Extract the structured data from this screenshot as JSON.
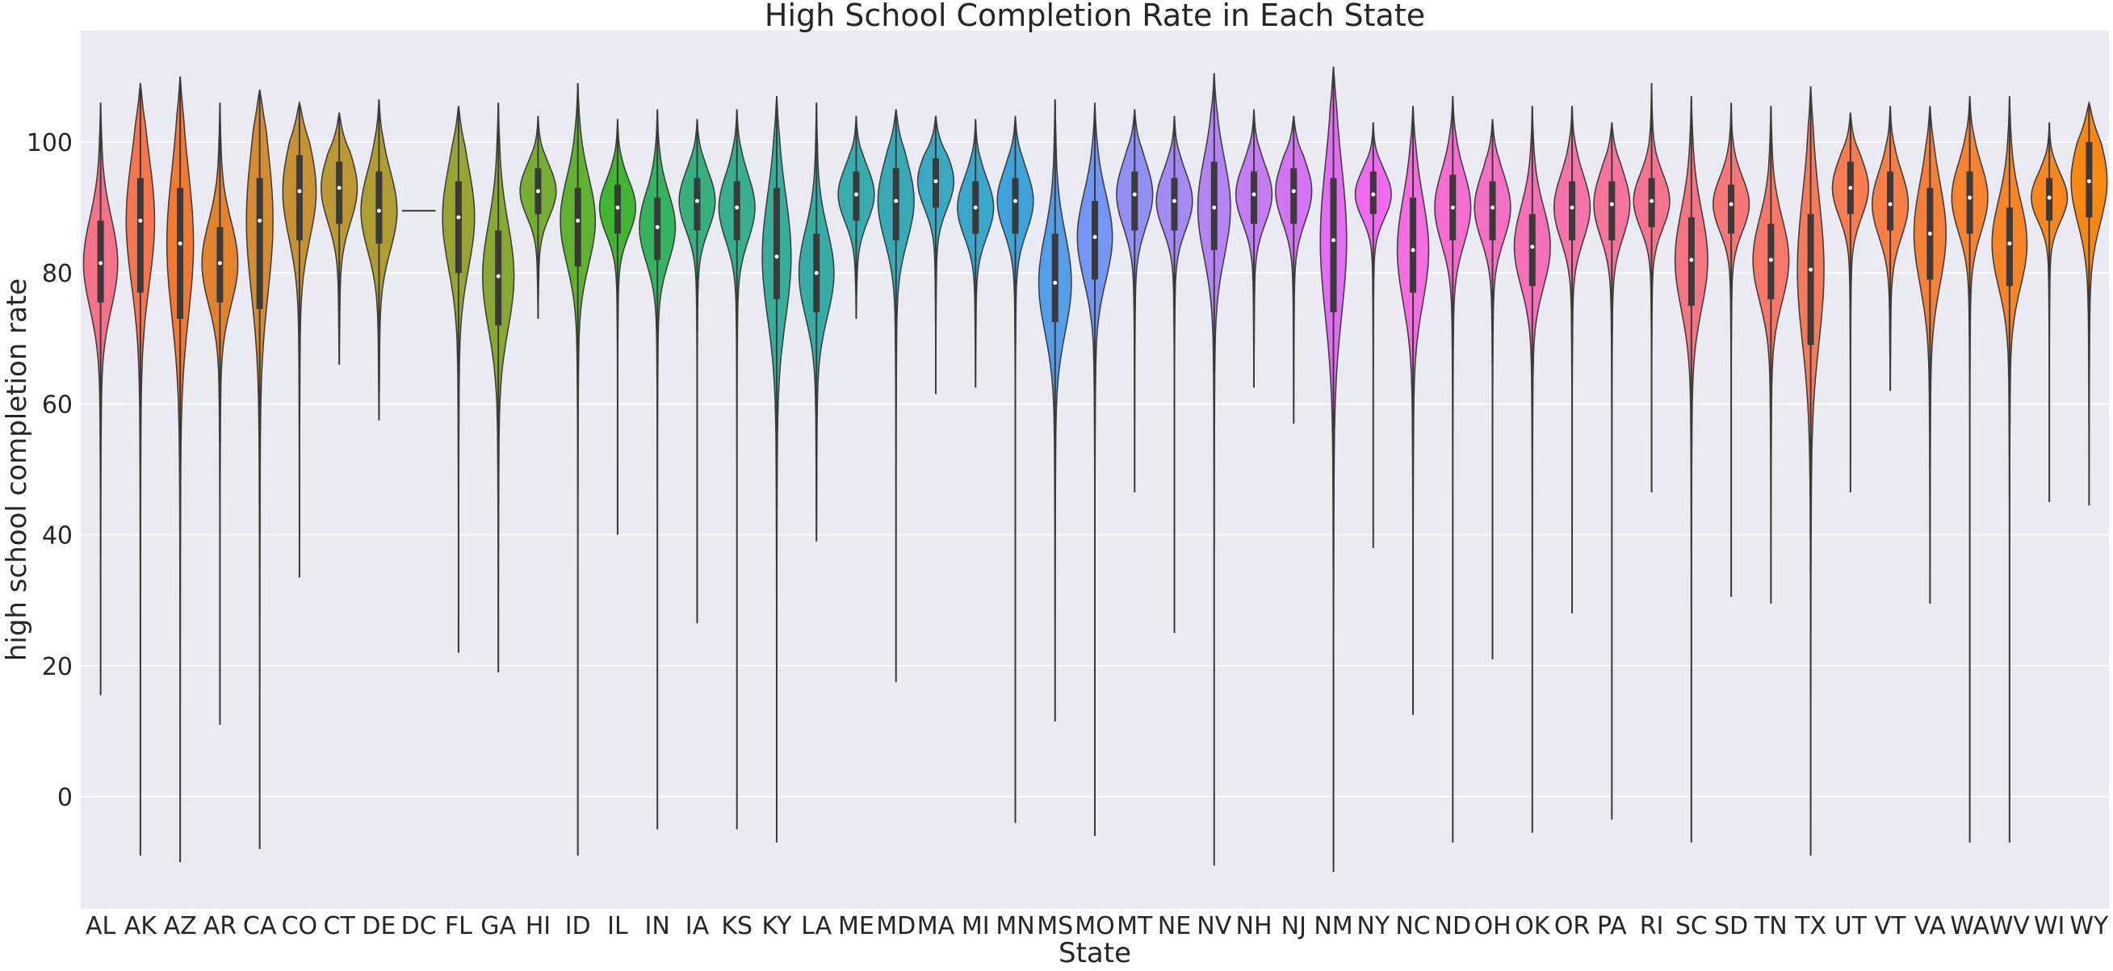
{
  "chart_data": {
    "type": "violin",
    "title": "High School Completion Rate in Each State",
    "xlabel": "State",
    "ylabel": "high school completion rate",
    "ylim": [
      -17,
      117
    ],
    "yticks": [
      0,
      20,
      40,
      60,
      80,
      100
    ],
    "grid": true,
    "categories": [
      "AL",
      "AK",
      "AZ",
      "AR",
      "CA",
      "CO",
      "CT",
      "DE",
      "DC",
      "FL",
      "GA",
      "HI",
      "ID",
      "IL",
      "IN",
      "IA",
      "KS",
      "KY",
      "LA",
      "ME",
      "MD",
      "MA",
      "MI",
      "MN",
      "MS",
      "MO",
      "MT",
      "NE",
      "NV",
      "NH",
      "NJ",
      "NM",
      "NY",
      "NC",
      "ND",
      "OH",
      "OK",
      "OR",
      "PA",
      "RI",
      "SC",
      "SD",
      "TN",
      "TX",
      "UT",
      "VT",
      "VA",
      "WA",
      "WV",
      "WI",
      "WY"
    ],
    "series": [
      {
        "category": "AL",
        "min": 15.5,
        "q1": 75.5,
        "median": 81.5,
        "q3": 88,
        "max": 106,
        "color": "#f77189"
      },
      {
        "category": "AK",
        "min": -9,
        "q1": 77,
        "median": 88,
        "q3": 94.5,
        "max": 109,
        "color": "#f7754f"
      },
      {
        "category": "AZ",
        "min": -10,
        "q1": 73,
        "median": 84.5,
        "q3": 93,
        "max": 110,
        "color": "#f37932"
      },
      {
        "category": "AR",
        "min": 11,
        "q1": 75.5,
        "median": 81.5,
        "q3": 87,
        "max": 106,
        "color": "#e4832e"
      },
      {
        "category": "CA",
        "min": -8,
        "q1": 74.5,
        "median": 88,
        "q3": 94.5,
        "max": 108,
        "color": "#d58c32"
      },
      {
        "category": "CO",
        "min": 33.5,
        "q1": 85,
        "median": 92.5,
        "q3": 98,
        "max": 106,
        "color": "#c89232"
      },
      {
        "category": "CT",
        "min": 66,
        "q1": 87.5,
        "median": 93,
        "q3": 97,
        "max": 104.5,
        "color": "#bb9832"
      },
      {
        "category": "DE",
        "min": 57.5,
        "q1": 84.5,
        "median": 89.5,
        "q3": 95.5,
        "max": 106.5,
        "color": "#ae9d31"
      },
      {
        "category": "DC",
        "min": 89.5,
        "q1": 89.5,
        "median": 89.5,
        "q3": 89.5,
        "max": 89.5,
        "color": "#a1a231"
      },
      {
        "category": "FL",
        "min": 22,
        "q1": 80,
        "median": 88.5,
        "q3": 94,
        "max": 105.5,
        "color": "#97a431"
      },
      {
        "category": "GA",
        "min": 19,
        "q1": 72,
        "median": 79.5,
        "q3": 86.5,
        "max": 106,
        "color": "#88a931"
      },
      {
        "category": "HI",
        "min": 73,
        "q1": 89,
        "median": 92.5,
        "q3": 96,
        "max": 104,
        "color": "#77ad31"
      },
      {
        "category": "ID",
        "min": -9,
        "q1": 81,
        "median": 88,
        "q3": 93,
        "max": 109,
        "color": "#61b131"
      },
      {
        "category": "IL",
        "min": 40,
        "q1": 86,
        "median": 90,
        "q3": 93.5,
        "max": 103.5,
        "color": "#3fb532"
      },
      {
        "category": "IN",
        "min": -5,
        "q1": 82,
        "median": 87,
        "q3": 91.5,
        "max": 105,
        "color": "#33b35d"
      },
      {
        "category": "IA",
        "min": 26.5,
        "q1": 86.5,
        "median": 91,
        "q3": 94.5,
        "max": 103.5,
        "color": "#34b17d"
      },
      {
        "category": "KS",
        "min": -5,
        "q1": 85,
        "median": 90,
        "q3": 94,
        "max": 105,
        "color": "#35af8f"
      },
      {
        "category": "KY",
        "min": -7,
        "q1": 76,
        "median": 82.5,
        "q3": 93,
        "max": 107,
        "color": "#36ae9b"
      },
      {
        "category": "LA",
        "min": 39,
        "q1": 74,
        "median": 80,
        "q3": 86,
        "max": 106,
        "color": "#36ada4"
      },
      {
        "category": "ME",
        "min": 73,
        "q1": 88,
        "median": 92,
        "q3": 95.5,
        "max": 104,
        "color": "#37acad"
      },
      {
        "category": "MD",
        "min": 17.5,
        "q1": 85,
        "median": 91,
        "q3": 96,
        "max": 105,
        "color": "#38aab6"
      },
      {
        "category": "MA",
        "min": 61.5,
        "q1": 90,
        "median": 94,
        "q3": 97.5,
        "max": 104,
        "color": "#39a8c0"
      },
      {
        "category": "MI",
        "min": 62.5,
        "q1": 86,
        "median": 90,
        "q3": 94,
        "max": 103.5,
        "color": "#3ba6cc"
      },
      {
        "category": "MN",
        "min": -4,
        "q1": 86,
        "median": 91,
        "q3": 94.5,
        "max": 104,
        "color": "#3ea3d9"
      },
      {
        "category": "MS",
        "min": 11.5,
        "q1": 72.5,
        "median": 78.5,
        "q3": 86,
        "max": 106.5,
        "color": "#539de9"
      },
      {
        "category": "MO",
        "min": -6,
        "q1": 79,
        "median": 85.5,
        "q3": 91,
        "max": 106,
        "color": "#7396f4"
      },
      {
        "category": "MT",
        "min": 46.5,
        "q1": 86.5,
        "median": 92,
        "q3": 95.5,
        "max": 105,
        "color": "#8f8ff4"
      },
      {
        "category": "NE",
        "min": 25,
        "q1": 86.5,
        "median": 91,
        "q3": 94.5,
        "max": 104,
        "color": "#a589f4"
      },
      {
        "category": "NV",
        "min": -10.5,
        "q1": 83.5,
        "median": 90,
        "q3": 97,
        "max": 110.5,
        "color": "#b483f4"
      },
      {
        "category": "NH",
        "min": 62.5,
        "q1": 87.5,
        "median": 92,
        "q3": 95.5,
        "max": 105,
        "color": "#c37cf4"
      },
      {
        "category": "NJ",
        "min": 57,
        "q1": 87.5,
        "median": 92.5,
        "q3": 96,
        "max": 104,
        "color": "#d274f4"
      },
      {
        "category": "NM",
        "min": -11.5,
        "q1": 74,
        "median": 85,
        "q3": 94.5,
        "max": 111.5,
        "color": "#e26cf4"
      },
      {
        "category": "NY",
        "min": 38,
        "q1": 89,
        "median": 92,
        "q3": 95.5,
        "max": 103,
        "color": "#f06af0"
      },
      {
        "category": "NC",
        "min": 12.5,
        "q1": 77,
        "median": 83.5,
        "q3": 91.5,
        "max": 105.5,
        "color": "#f46ce0"
      },
      {
        "category": "ND",
        "min": -7,
        "q1": 85,
        "median": 90,
        "q3": 95,
        "max": 107,
        "color": "#f56dd1"
      },
      {
        "category": "OH",
        "min": 21,
        "q1": 85,
        "median": 90,
        "q3": 94,
        "max": 103.5,
        "color": "#f56fc4"
      },
      {
        "category": "OK",
        "min": -5.5,
        "q1": 78,
        "median": 84,
        "q3": 89,
        "max": 105.5,
        "color": "#f570b7"
      },
      {
        "category": "OR",
        "min": 28,
        "q1": 85,
        "median": 90,
        "q3": 94,
        "max": 105.5,
        "color": "#f572aa"
      },
      {
        "category": "PA",
        "min": -3.5,
        "q1": 85,
        "median": 90.5,
        "q3": 94,
        "max": 103,
        "color": "#f6739c"
      },
      {
        "category": "RI",
        "min": 46.5,
        "q1": 87,
        "median": 91,
        "q3": 94.5,
        "max": 109,
        "color": "#f6748f"
      },
      {
        "category": "SC",
        "min": -7,
        "q1": 75,
        "median": 82,
        "q3": 88.5,
        "max": 107,
        "color": "#f67582"
      },
      {
        "category": "SD",
        "min": 30.5,
        "q1": 86,
        "median": 90.5,
        "q3": 93.5,
        "max": 106,
        "color": "#f67775"
      },
      {
        "category": "TN",
        "min": 29.5,
        "q1": 76,
        "median": 82,
        "q3": 87.5,
        "max": 105.5,
        "color": "#f77868"
      },
      {
        "category": "TX",
        "min": -9,
        "q1": 69,
        "median": 80.5,
        "q3": 89,
        "max": 108.5,
        "color": "#f77a5b"
      },
      {
        "category": "UT",
        "min": 46.5,
        "q1": 89,
        "median": 93,
        "q3": 97,
        "max": 104.5,
        "color": "#f77c4f"
      },
      {
        "category": "VT",
        "min": 62,
        "q1": 86.5,
        "median": 90.5,
        "q3": 95.5,
        "max": 105.5,
        "color": "#f77e44"
      },
      {
        "category": "VA",
        "min": 29.5,
        "q1": 79,
        "median": 86,
        "q3": 93,
        "max": 105.5,
        "color": "#f78039"
      },
      {
        "category": "WA",
        "min": -7,
        "q1": 86,
        "median": 91.5,
        "q3": 95.5,
        "max": 107,
        "color": "#f7822f"
      },
      {
        "category": "WV",
        "min": -7,
        "q1": 78,
        "median": 84.5,
        "q3": 90,
        "max": 107,
        "color": "#f78425"
      },
      {
        "category": "WI",
        "min": 45,
        "q1": 88,
        "median": 91.5,
        "q3": 94.5,
        "max": 103,
        "color": "#f7861b"
      },
      {
        "category": "WY",
        "min": 44.5,
        "q1": 88.5,
        "median": 94,
        "q3": 100,
        "max": 106,
        "color": "#f78811"
      }
    ]
  }
}
